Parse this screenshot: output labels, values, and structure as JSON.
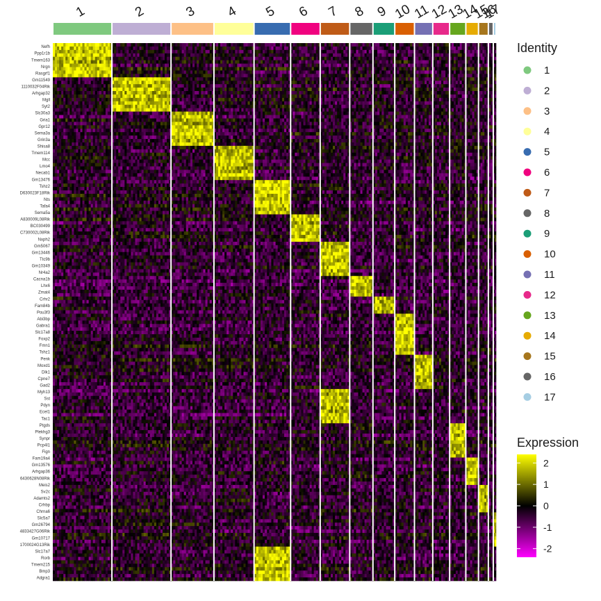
{
  "chart_data": {
    "type": "heatmap",
    "clusters": [
      {
        "id": "1",
        "color": "#7fc97f",
        "cells": 84
      },
      {
        "id": "2",
        "color": "#beaed4",
        "cells": 84
      },
      {
        "id": "3",
        "color": "#fdc086",
        "cells": 61
      },
      {
        "id": "4",
        "color": "#ffff99",
        "cells": 57
      },
      {
        "id": "5",
        "color": "#386cb0",
        "cells": 52
      },
      {
        "id": "6",
        "color": "#f0027f",
        "cells": 42
      },
      {
        "id": "7",
        "color": "#bf5b17",
        "cells": 42
      },
      {
        "id": "8",
        "color": "#666666",
        "cells": 33
      },
      {
        "id": "9",
        "color": "#1b9e77",
        "cells": 31
      },
      {
        "id": "10",
        "color": "#d95f02",
        "cells": 28
      },
      {
        "id": "11",
        "color": "#7570b3",
        "cells": 26
      },
      {
        "id": "12",
        "color": "#e7298a",
        "cells": 24
      },
      {
        "id": "13",
        "color": "#66a61e",
        "cells": 23
      },
      {
        "id": "14",
        "color": "#e6ab02",
        "cells": 18
      },
      {
        "id": "15",
        "color": "#a6761d",
        "cells": 14
      },
      {
        "id": "16",
        "color": "#666666",
        "cells": 7
      },
      {
        "id": "17",
        "color": "#a6cee3",
        "cells": 4
      }
    ],
    "gene_labels": [
      "Nefh",
      "Ppp1r1b",
      "Tmem163",
      "Nrgn",
      "Rasgrf1",
      "Gm11549",
      "1110032F04Rik",
      "Arhgap32",
      "Mgll",
      "Syt2",
      "Slc30a3",
      "Gria1",
      "Gpr12",
      "Sema3a",
      "Grin3a",
      "Shisa8",
      "Tmem114",
      "Mcc",
      "Lmo4",
      "Necab1",
      "Gm13476",
      "Tshz2",
      "D630023F18Rik",
      "Nts",
      "Tafa4",
      "Sema5a",
      "A830009L08Rik",
      "BC030499",
      "C730002L08Rik",
      "Nxph2",
      "Gm5067",
      "Gm13446",
      "Ttc9b",
      "Gm10349",
      "Nr4a2",
      "Cacna1b",
      "Lhx6",
      "Zmat4",
      "Crhr2",
      "Fam84b",
      "Pou3f3",
      "Abi3bp",
      "Gabra1",
      "Slc17a8",
      "Foxp2",
      "Fmn1",
      "Tshz1",
      "Penk",
      "Moxd1",
      "Dlk1",
      "Cpne7",
      "Gad2",
      "Myh13",
      "Sst",
      "Pdyn",
      "Ecel1",
      "Tac1",
      "Ptgds",
      "Plekhg3",
      "Synpr",
      "Pcp4l1",
      "Fign",
      "Fam19a4",
      "Gm13576",
      "Arhgap36",
      "6430628N08Rik",
      "Meis2",
      "Sv2c",
      "Adamts2",
      "Crhbp",
      "Chrna6",
      "Slc5a7",
      "Gm26794",
      "4833427G06Rik",
      "Gm10717",
      "1700024G13Rik",
      "Slc17a7",
      "Rorb",
      "Tmem215",
      "Bmp3",
      "Adgra1"
    ],
    "row_blocks": [
      {
        "highlight": "1",
        "genes": 10
      },
      {
        "highlight": "2",
        "genes": 10
      },
      {
        "highlight": "3",
        "genes": 10
      },
      {
        "highlight": "4",
        "genes": 10
      },
      {
        "highlight": "5",
        "genes": 10
      },
      {
        "highlight": "6",
        "genes": 8
      },
      {
        "highlight": "7",
        "genes": 10
      },
      {
        "highlight": "8",
        "genes": 6
      },
      {
        "highlight": "9",
        "genes": 5
      },
      {
        "highlight": "10",
        "genes": 12
      },
      {
        "highlight": "11",
        "genes": 10
      },
      {
        "highlight": "7",
        "genes": 10
      },
      {
        "highlight": "13",
        "genes": 10
      },
      {
        "highlight": "14",
        "genes": 8
      },
      {
        "highlight": "15",
        "genes": 8
      },
      {
        "highlight": "17",
        "genes": 10
      },
      {
        "highlight": "5",
        "genes": 10
      }
    ],
    "legend": {
      "identity_title": "Identity",
      "identity_labels": [
        "1",
        "2",
        "3",
        "4",
        "5",
        "6",
        "7",
        "8",
        "9",
        "10",
        "11",
        "12",
        "13",
        "14",
        "15",
        "16",
        "17"
      ],
      "expression_title": "Expression",
      "expression_ticks": [
        2,
        1,
        0,
        -1,
        -2
      ],
      "expression_range": [
        -2.4,
        2.4
      ],
      "colormap": [
        "#ff00ff",
        "#000000",
        "#ffff00"
      ]
    }
  }
}
